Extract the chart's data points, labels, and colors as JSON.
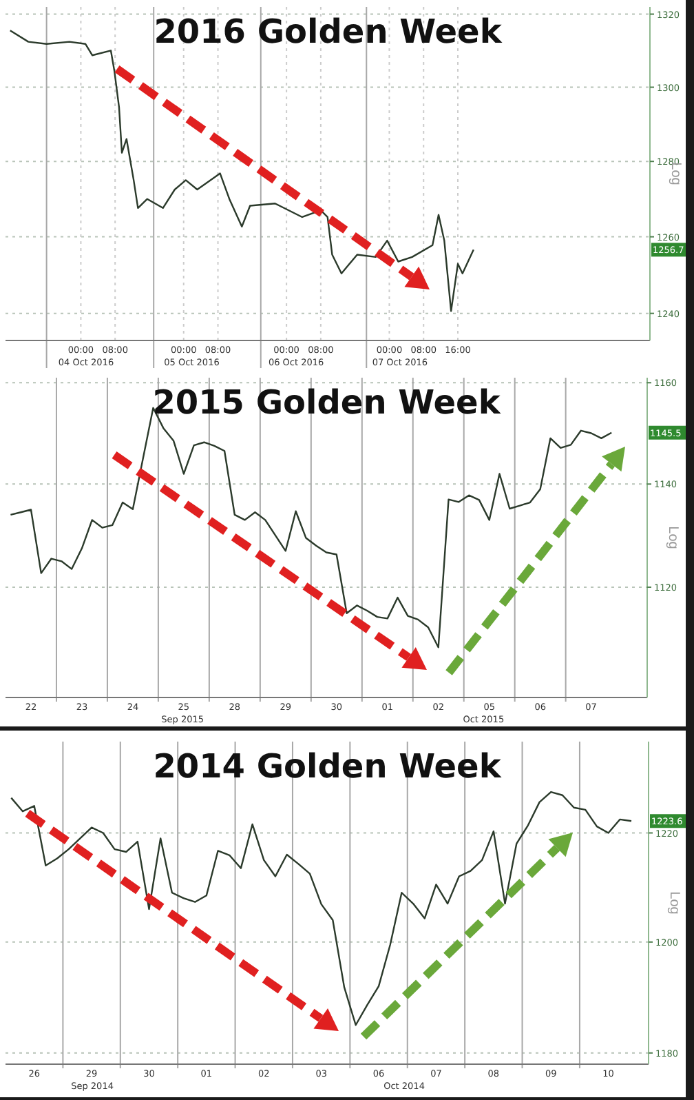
{
  "chart_data": [
    {
      "type": "line",
      "title": "2016 Golden Week",
      "ylabel": "Log",
      "log": true,
      "grid": true,
      "line_style": "solid",
      "x": [
        "2016-10-03T07:30",
        "2016-10-03T11:45",
        "2016-10-03T16:00",
        "2016-10-03T21:20",
        "2016-10-04T01:05",
        "2016-10-04T02:40",
        "2016-10-04T07:00",
        "2016-10-04T07:50",
        "2016-10-04T08:55",
        "2016-10-04T09:35",
        "2016-10-04T10:40",
        "2016-10-04T12:20",
        "2016-10-04T13:20",
        "2016-10-04T15:30",
        "2016-10-04T19:10",
        "2016-10-04T21:55",
        "2016-10-05T00:30",
        "2016-10-05T03:10",
        "2016-10-05T08:30",
        "2016-10-05T10:40",
        "2016-10-05T13:35",
        "2016-10-05T15:30",
        "2016-10-05T21:20",
        "2016-10-06T03:40",
        "2016-10-06T08:00",
        "2016-10-06T09:35",
        "2016-10-06T10:40",
        "2016-10-06T12:50",
        "2016-10-06T16:30",
        "2016-10-06T20:50",
        "2016-10-06T23:30",
        "2016-10-07T02:05",
        "2016-10-07T05:20",
        "2016-10-07T10:05",
        "2016-10-07T11:30",
        "2016-10-07T12:50",
        "2016-10-07T14:25",
        "2016-10-07T16:00",
        "2016-10-07T17:05",
        "2016-10-07T19:40"
      ],
      "series": [
        {
          "color": "#2b3a2b",
          "values": [
            1315.5,
            1312.4,
            1311.8,
            1312.4,
            1311.8,
            1308.7,
            1310,
            1304.4,
            1294.6,
            1282.3,
            1286,
            1275,
            1267.6,
            1270,
            1267.6,
            1272.5,
            1275,
            1272.5,
            1276.8,
            1270,
            1262.7,
            1268.2,
            1268.8,
            1265.2,
            1267,
            1265.2,
            1255.3,
            1250.4,
            1255.3,
            1254.7,
            1259,
            1253.5,
            1254.7,
            1257.8,
            1265.8,
            1259,
            1240.6,
            1252.9,
            1250.4,
            1256.6
          ]
        }
      ],
      "xlim": [
        "2016-10-03T06:25",
        "2016-10-09T12:50"
      ],
      "ylim": [
        1233,
        1322
      ],
      "xticks": [
        {
          "value": "2016-10-03T16:00",
          "label": null
        },
        {
          "value": "2016-10-04T00:00",
          "label": "00:00"
        },
        {
          "value": "2016-10-04T08:00",
          "label": "08:00"
        },
        {
          "value": "2016-10-04T17:00",
          "label": null
        },
        {
          "value": "2016-10-05T00:00",
          "label": "00:00"
        },
        {
          "value": "2016-10-05T08:00",
          "label": "08:00"
        },
        {
          "value": "2016-10-05T18:00",
          "label": null
        },
        {
          "value": "2016-10-06T00:00",
          "label": "00:00"
        },
        {
          "value": "2016-10-06T08:00",
          "label": "08:00"
        },
        {
          "value": "2016-10-06T18:40",
          "label": null
        },
        {
          "value": "2016-10-07T00:00",
          "label": "00:00"
        },
        {
          "value": "2016-10-07T08:00",
          "label": "08:00"
        },
        {
          "value": "2016-10-07T16:00",
          "label": "16:00"
        }
      ],
      "yticks": [
        1240,
        1260,
        1280,
        1300,
        1320
      ],
      "annotations": [
        "04 Oct 2016",
        "05 Oct 2016",
        "06 Oct 2016",
        "07 Oct 2016",
        "1256.7"
      ]
    },
    {
      "type": "line",
      "title": "2015 Golden Week",
      "ylabel": "Log",
      "log": true,
      "grid": true,
      "line_style": "solid",
      "categories": [
        null,
        null,
        "22",
        null,
        null,
        null,
        null,
        "23",
        null,
        null,
        null,
        null,
        "24",
        null,
        null,
        null,
        null,
        "25",
        null,
        null,
        null,
        null,
        "28",
        null,
        null,
        null,
        null,
        "29",
        null,
        null,
        null,
        null,
        "30",
        null,
        null,
        null,
        null,
        "01",
        null,
        null,
        null,
        null,
        "02",
        null,
        null,
        null,
        null,
        "05",
        null,
        null,
        null,
        null,
        "06",
        null,
        null,
        null,
        null,
        "07",
        null,
        null,
        null,
        null,
        null
      ],
      "series": [
        {
          "color": "#2b3a2b",
          "values": [
            1134.0,
            1134.5,
            1135,
            1122.7,
            1125.5,
            1125,
            1123.5,
            1127.5,
            1133,
            1131.5,
            1132,
            1136.4,
            1135.1,
            1145,
            1155,
            1151,
            1148.5,
            1142,
            1147.6,
            1148.2,
            1147.5,
            1146.5,
            1134,
            1133,
            1134.5,
            1133,
            1130,
            1127,
            1134.7,
            1129.5,
            1128,
            1126.7,
            1126.3,
            1115,
            1116.5,
            1115.5,
            1114.3,
            1114,
            1118,
            1114.5,
            1113.8,
            1112.3,
            1108.5,
            1137,
            1136.5,
            1137.8,
            1136.9,
            1133,
            1142,
            1135.2,
            1135.8,
            1136.4,
            1139,
            1149,
            1147.1,
            1147.7,
            1150.5,
            1150,
            1149,
            1150.1,
            null,
            null,
            null
          ]
        }
      ],
      "ylim": [
        1099,
        1161
      ],
      "yticks": [
        1120,
        1140,
        1160
      ],
      "annotations": [
        "Sep 2015",
        "Oct 2015",
        "1145.5"
      ]
    },
    {
      "type": "line",
      "title": "2014 Golden Week",
      "ylabel": "Log",
      "log": true,
      "grid": true,
      "line_style": "solid",
      "categories": [
        null,
        null,
        "26",
        null,
        null,
        null,
        null,
        "29",
        null,
        null,
        null,
        null,
        "30",
        null,
        null,
        null,
        null,
        "01",
        null,
        null,
        null,
        null,
        "02",
        null,
        null,
        null,
        null,
        "03",
        null,
        null,
        null,
        null,
        "06",
        null,
        null,
        null,
        null,
        "07",
        null,
        null,
        null,
        null,
        "08",
        null,
        null,
        null,
        null,
        "09",
        null,
        null,
        null,
        null,
        "10",
        null,
        null,
        null
      ],
      "series": [
        {
          "color": "#2b3a2b",
          "values": [
            1226.5,
            1224,
            1225,
            1214,
            1215.3,
            1217,
            1219,
            1221,
            1220,
            1217,
            1216.5,
            1218.4,
            1206,
            1219,
            1209,
            1208,
            1207.3,
            1208.5,
            1216.7,
            1215.9,
            1213.5,
            1221.6,
            1215,
            1212,
            1216,
            1214.3,
            1212.5,
            1206.9,
            1204,
            1191.8,
            1185,
            1188.6,
            1192,
            1199.5,
            1209,
            1207,
            1204.3,
            1210.5,
            1207,
            1212,
            1213,
            1215,
            1220.3,
            1207,
            1218,
            1221.4,
            1225.7,
            1227.6,
            1227,
            1224.7,
            1224.3,
            1221.2,
            1220,
            1222.5,
            1222.2,
            null
          ]
        }
      ],
      "ylim": [
        1178,
        1237
      ],
      "yticks": [
        1180,
        1200,
        1220
      ],
      "annotations": [
        "Sep 2014",
        "Oct 2014",
        "1223.6"
      ]
    }
  ]
}
